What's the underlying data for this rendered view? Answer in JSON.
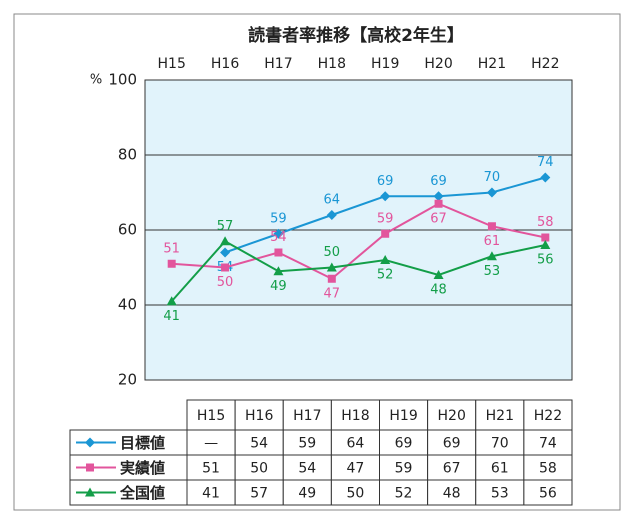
{
  "chart_data": {
    "type": "line",
    "title": "読書者率推移【高校2年生】",
    "y_label": "%",
    "categories": [
      "H15",
      "H16",
      "H17",
      "H18",
      "H19",
      "H20",
      "H21",
      "H22"
    ],
    "series": [
      {
        "name": "目標値",
        "color": "#1a96d4",
        "marker": "diamond",
        "values": [
          null,
          54,
          59,
          64,
          69,
          69,
          70,
          74
        ]
      },
      {
        "name": "実績値",
        "color": "#e2559c",
        "marker": "square",
        "values": [
          51,
          50,
          54,
          47,
          59,
          67,
          61,
          58
        ]
      },
      {
        "name": "全国値",
        "color": "#139e48",
        "marker": "triangle",
        "values": [
          41,
          57,
          49,
          50,
          52,
          48,
          53,
          56
        ]
      }
    ],
    "table_empty": "—",
    "ylim": [
      20,
      100
    ],
    "yticks": [
      20,
      40,
      60,
      80,
      100
    ],
    "grid": true
  }
}
